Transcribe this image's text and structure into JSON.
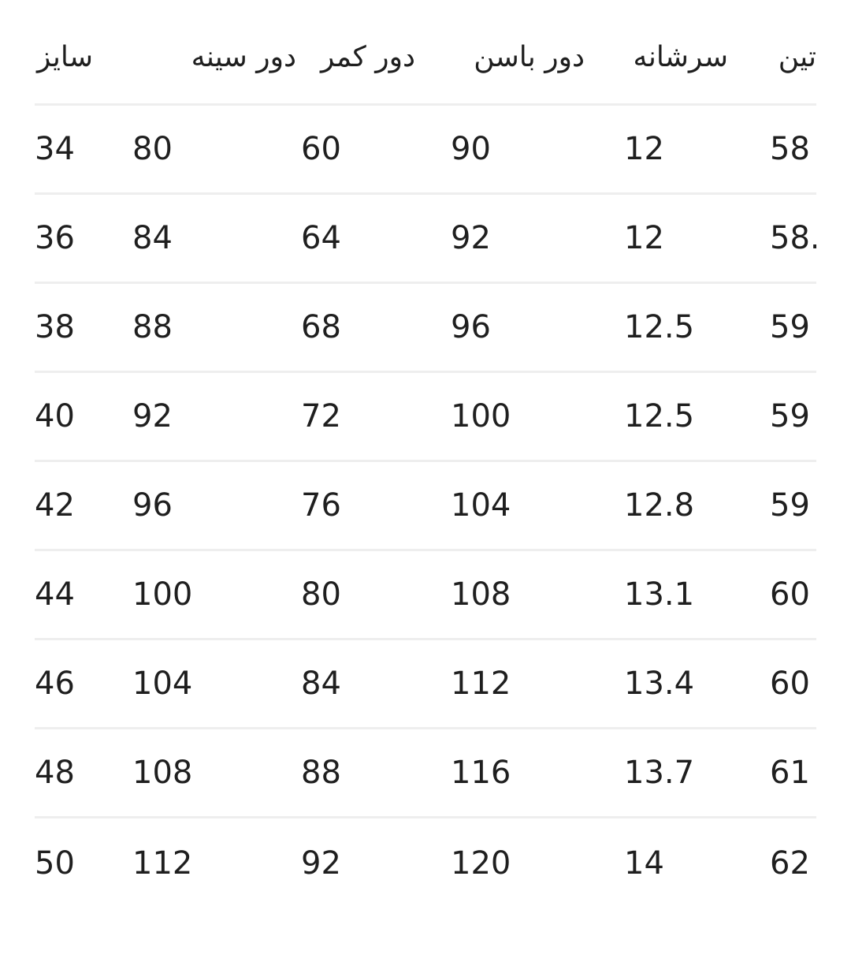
{
  "table": {
    "headers": [
      "سایز",
      "دور سینه",
      "دور کمر",
      "دور باسن",
      "سرشانه",
      "تین"
    ],
    "rows": [
      [
        "34",
        "80",
        "60",
        "90",
        "12",
        "58"
      ],
      [
        "36",
        "84",
        "64",
        "92",
        "12",
        "58."
      ],
      [
        "38",
        "88",
        "68",
        "96",
        "12.5",
        "59"
      ],
      [
        "40",
        "92",
        "72",
        "100",
        "12.5",
        "59"
      ],
      [
        "42",
        "96",
        "76",
        "104",
        "12.8",
        "59"
      ],
      [
        "44",
        "100",
        "80",
        "108",
        "13.1",
        "60"
      ],
      [
        "46",
        "104",
        "84",
        "112",
        "13.4",
        "60"
      ],
      [
        "48",
        "108",
        "88",
        "116",
        "13.7",
        "61"
      ],
      [
        "50",
        "112",
        "92",
        "120",
        "14",
        "62"
      ]
    ]
  }
}
